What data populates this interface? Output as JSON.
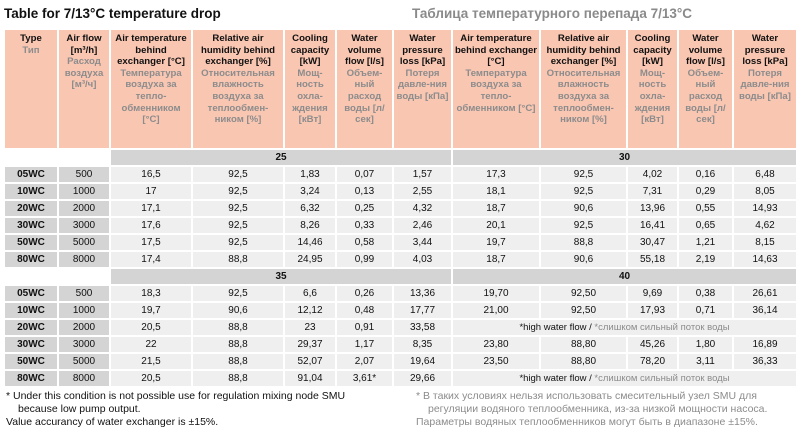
{
  "title_en": "Table for 7/13°C temperature drop",
  "title_ru": "Таблица температурного перепада 7/13°C",
  "columns": [
    {
      "en": "Type",
      "ru": "Тип"
    },
    {
      "en": "Air flow [m³/h]",
      "ru": "Расход воздуха [м³/ч]"
    },
    {
      "en": "Air temperature behind exchanger [°C]",
      "ru": "Температура воздуха за тепло-обменником [°C]"
    },
    {
      "en": "Relative air humidity behind exchanger [%]",
      "ru": "Относительная влажность воздуха за теплообмен-ником [%]"
    },
    {
      "en": "Cooling capacity [kW]",
      "ru": "Мощ-ность охла-ждения [кВт]"
    },
    {
      "en": "Water volume flow [l/s]",
      "ru": "Объем-ный расход воды [л/сек]"
    },
    {
      "en": "Water pressure loss [kPa]",
      "ru": "Потеря давле-ния воды [кПа]"
    },
    {
      "en": "Air temperature behind exchanger [°C]",
      "ru": "Температура воздуха за тепло-обменником [°C]"
    },
    {
      "en": "Relative air humidity behind exchanger [%]",
      "ru": "Относительная влажность воздуха за теплообмен-ником [%]"
    },
    {
      "en": "Cooling capacity [kW]",
      "ru": "Мощ-ность охла-ждения [кВт]"
    },
    {
      "en": "Water volume flow [l/s]",
      "ru": "Объем-ный расход воды [л/сек]"
    },
    {
      "en": "Water pressure loss [kPa]",
      "ru": "Потеря давле-ния воды [кПа]"
    }
  ],
  "note_en": "*high water flow /",
  "note_ru": "*слишком сильный поток воды",
  "sections": [
    {
      "left_temp": "25",
      "right_temp": "30",
      "rows": [
        {
          "type": "05WC",
          "flow": "500",
          "left": [
            "16,5",
            "92,5",
            "1,83",
            "0,07",
            "1,57"
          ],
          "right": [
            "17,3",
            "92,5",
            "4,02",
            "0,16",
            "6,48"
          ]
        },
        {
          "type": "10WC",
          "flow": "1000",
          "left": [
            "17",
            "92,5",
            "3,24",
            "0,13",
            "2,55"
          ],
          "right": [
            "18,1",
            "92,5",
            "7,31",
            "0,29",
            "8,05"
          ]
        },
        {
          "type": "20WC",
          "flow": "2000",
          "left": [
            "17,1",
            "92,5",
            "6,32",
            "0,25",
            "4,32"
          ],
          "right": [
            "18,7",
            "90,6",
            "13,96",
            "0,55",
            "14,93"
          ]
        },
        {
          "type": "30WC",
          "flow": "3000",
          "left": [
            "17,6",
            "92,5",
            "8,26",
            "0,33",
            "2,46"
          ],
          "right": [
            "20,1",
            "92,5",
            "16,41",
            "0,65",
            "4,62"
          ]
        },
        {
          "type": "50WC",
          "flow": "5000",
          "left": [
            "17,5",
            "92,5",
            "14,46",
            "0,58",
            "3,44"
          ],
          "right": [
            "19,7",
            "88,8",
            "30,47",
            "1,21",
            "8,15"
          ]
        },
        {
          "type": "80WC",
          "flow": "8000",
          "left": [
            "17,4",
            "88,8",
            "24,95",
            "0,99",
            "4,03"
          ],
          "right": [
            "18,7",
            "90,6",
            "55,18",
            "2,19",
            "14,63"
          ]
        }
      ]
    },
    {
      "left_temp": "35",
      "right_temp": "40",
      "rows": [
        {
          "type": "05WC",
          "flow": "500",
          "left": [
            "18,3",
            "92,5",
            "6,6",
            "0,26",
            "13,36"
          ],
          "right": [
            "19,70",
            "92,50",
            "9,69",
            "0,38",
            "26,61"
          ]
        },
        {
          "type": "10WC",
          "flow": "1000",
          "left": [
            "19,7",
            "90,6",
            "12,12",
            "0,48",
            "17,77"
          ],
          "right": [
            "21,00",
            "92,50",
            "17,93",
            "0,71",
            "36,14"
          ]
        },
        {
          "type": "20WC",
          "flow": "2000",
          "left": [
            "20,5",
            "88,8",
            "23",
            "0,91",
            "33,58"
          ],
          "right": null
        },
        {
          "type": "30WC",
          "flow": "3000",
          "left": [
            "22",
            "88,8",
            "29,37",
            "1,17",
            "8,35"
          ],
          "right": [
            "23,80",
            "88,80",
            "45,26",
            "1,80",
            "16,89"
          ]
        },
        {
          "type": "50WC",
          "flow": "5000",
          "left": [
            "21,5",
            "88,8",
            "52,07",
            "2,07",
            "19,64"
          ],
          "right": [
            "23,50",
            "88,80",
            "78,20",
            "3,11",
            "36,33"
          ]
        },
        {
          "type": "80WC",
          "flow": "8000",
          "left": [
            "20,5",
            "88,8",
            "91,04",
            "3,61*",
            "29,66"
          ],
          "right": null
        }
      ]
    }
  ],
  "footnote_en": {
    "line1": "* Under this condition is not possible use for regulation mixing node SMU",
    "line2": "because low pump output.",
    "line3": "Value accurancy of water exchanger is ±15%."
  },
  "footnote_ru": {
    "line1": "* В таких условиях нельзя использовать смесительный узел SMU для",
    "line2": "регуляции водяного теплообменника, из-за низкой мощности насоса.",
    "line3": "Параметры водяных теплообменников могут быть в диапазоне ±15%."
  },
  "colors": {
    "header": "#f9c6b2",
    "type_cell": "#d4d4d4",
    "value_cell": "#efefef",
    "russian_text": "#8c8c8c"
  }
}
